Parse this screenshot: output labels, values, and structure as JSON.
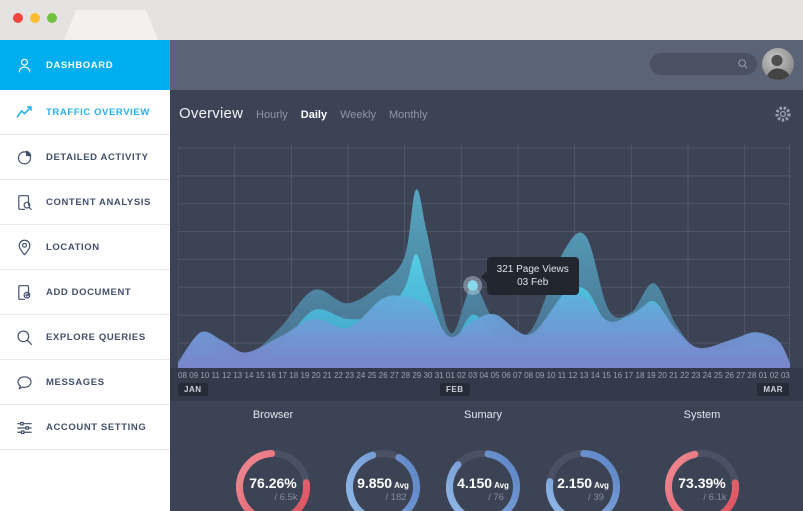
{
  "window": {
    "controls": [
      {
        "name": "close",
        "color": "#f2453d"
      },
      {
        "name": "minimize",
        "color": "#fdbd2f"
      },
      {
        "name": "maximize",
        "color": "#6fc13e"
      }
    ]
  },
  "sidebar": {
    "items": [
      {
        "label": "DASHBOARD",
        "icon": "user",
        "active": true
      },
      {
        "label": "TRAFFIC OVERVIEW",
        "icon": "line-chart",
        "highlight": true
      },
      {
        "label": "DETAILED ACTIVITY",
        "icon": "pie-chart"
      },
      {
        "label": "CONTENT ANALYSIS",
        "icon": "doc-search"
      },
      {
        "label": "LOCATION",
        "icon": "map-pin"
      },
      {
        "label": "ADD DOCUMENT",
        "icon": "doc-add"
      },
      {
        "label": "EXPLORE QUERIES",
        "icon": "magnifier"
      },
      {
        "label": "MESSAGES",
        "icon": "chat-bubble"
      },
      {
        "label": "ACCOUNT SETTING",
        "icon": "sliders"
      }
    ]
  },
  "topbar": {
    "search_placeholder": ""
  },
  "overview": {
    "title": "Overview",
    "tabs": [
      {
        "label": "Hourly",
        "active": false
      },
      {
        "label": "Daily",
        "active": true
      },
      {
        "label": "Weekly",
        "active": false
      },
      {
        "label": "Monthly",
        "active": false
      }
    ]
  },
  "chart_data": {
    "type": "area",
    "title": "Traffic Overview - Daily",
    "unit": "Page Views",
    "x_labels": [
      "08",
      "09",
      "10",
      "11",
      "12",
      "13",
      "14",
      "15",
      "16",
      "17",
      "18",
      "19",
      "20",
      "21",
      "22",
      "23",
      "24",
      "25",
      "26",
      "27",
      "28",
      "29",
      "30",
      "31",
      "01",
      "02",
      "03",
      "04",
      "05",
      "06",
      "07",
      "08",
      "09",
      "10",
      "11",
      "12",
      "13",
      "14",
      "15",
      "16",
      "17",
      "18",
      "19",
      "20",
      "21",
      "22",
      "23",
      "24",
      "25",
      "26",
      "27",
      "28",
      "01",
      "02",
      "03"
    ],
    "months": [
      {
        "label": "JAN",
        "index": 0
      },
      {
        "label": "FEB",
        "index": 24
      },
      {
        "label": "MAR",
        "index": 52
      }
    ],
    "grid": {
      "v_step_days": 5,
      "h_lines": 8
    },
    "value_scale": "percent_of_plot_height",
    "series": [
      {
        "name": "layer-back",
        "color_top": "#58aec9",
        "color_bottom": "#49708f",
        "opacity": 0.92,
        "points": [
          [
            0,
            3
          ],
          [
            2,
            15
          ],
          [
            4,
            9
          ],
          [
            6,
            5
          ],
          [
            9,
            18
          ],
          [
            12,
            35
          ],
          [
            15,
            29
          ],
          [
            18,
            38
          ],
          [
            20,
            50
          ],
          [
            21,
            80
          ],
          [
            22,
            60
          ],
          [
            24,
            16
          ],
          [
            26,
            37
          ],
          [
            28,
            21
          ],
          [
            31,
            16
          ],
          [
            34,
            52
          ],
          [
            36,
            59
          ],
          [
            38,
            26
          ],
          [
            40,
            25
          ],
          [
            42,
            38
          ],
          [
            44,
            19
          ],
          [
            46,
            8
          ],
          [
            49,
            10
          ],
          [
            51,
            15
          ],
          [
            53,
            10
          ],
          [
            54,
            3
          ]
        ]
      },
      {
        "name": "layer-mid",
        "color_top": "#55d2ec",
        "color_bottom": "#3fa3c8",
        "opacity": 0.9,
        "points": [
          [
            0,
            2
          ],
          [
            2,
            10
          ],
          [
            4,
            6
          ],
          [
            6,
            4
          ],
          [
            9,
            10
          ],
          [
            12,
            26
          ],
          [
            15,
            22
          ],
          [
            18,
            24
          ],
          [
            20,
            36
          ],
          [
            21,
            51
          ],
          [
            22,
            36
          ],
          [
            24,
            12
          ],
          [
            26,
            24
          ],
          [
            28,
            15
          ],
          [
            31,
            12
          ],
          [
            34,
            33
          ],
          [
            36,
            35
          ],
          [
            38,
            19
          ],
          [
            40,
            22
          ],
          [
            42,
            30
          ],
          [
            44,
            15
          ],
          [
            46,
            8
          ],
          [
            49,
            9
          ],
          [
            51,
            11
          ],
          [
            53,
            9
          ],
          [
            54,
            2
          ]
        ]
      },
      {
        "name": "layer-front",
        "color_top": "#5fb0dd",
        "color_bottom": "#7e83cd",
        "opacity": 0.95,
        "points": [
          [
            0,
            2
          ],
          [
            2,
            16
          ],
          [
            4,
            12
          ],
          [
            6,
            7
          ],
          [
            9,
            14
          ],
          [
            12,
            22
          ],
          [
            15,
            18
          ],
          [
            18,
            31
          ],
          [
            20,
            32
          ],
          [
            22,
            28
          ],
          [
            24,
            14
          ],
          [
            26,
            21
          ],
          [
            28,
            24
          ],
          [
            31,
            15
          ],
          [
            34,
            32
          ],
          [
            36,
            31
          ],
          [
            38,
            21
          ],
          [
            40,
            24
          ],
          [
            42,
            29
          ],
          [
            44,
            17
          ],
          [
            46,
            9
          ],
          [
            49,
            13
          ],
          [
            51,
            16
          ],
          [
            53,
            12
          ],
          [
            54,
            2
          ]
        ]
      }
    ],
    "highlight": {
      "day_index": 26,
      "value": 37,
      "tooltip_line1": "321 Page Views",
      "tooltip_line2": "03 Feb"
    }
  },
  "gauges": {
    "group_labels": [
      {
        "label": "Browser",
        "gauge_index": 0
      },
      {
        "label": "Sumary",
        "gauge_index": 2
      },
      {
        "label": "System",
        "gauge_index": 4
      }
    ],
    "items": [
      {
        "value": "76.26%",
        "suffix": "",
        "sub": "/ 6.5k",
        "color": "red",
        "arc_percent": 76.26,
        "gap_deg": -50
      },
      {
        "value": "9.850",
        "suffix": "Avg",
        "sub": "/ 182",
        "color": "blue",
        "arc_percent": 87,
        "gap_deg": -85
      },
      {
        "value": "4.150",
        "suffix": "Avg",
        "sub": "/ 76",
        "color": "blue",
        "arc_percent": 84,
        "gap_deg": -110
      },
      {
        "value": "2.150",
        "suffix": "Avg",
        "sub": "/ 39",
        "color": "blue",
        "arc_percent": 77,
        "gap_deg": -130
      },
      {
        "value": "73.39%",
        "suffix": "",
        "sub": "/ 6.1k",
        "color": "red",
        "arc_percent": 73.39,
        "gap_deg": -55
      }
    ],
    "centers_x": [
      103,
      213,
      313,
      413,
      532
    ],
    "colors": {
      "red_light": "#ef8b93",
      "red_dark": "#dd4f5e",
      "blue_light": "#93bae8",
      "blue_dark": "#5b82c4",
      "track": "#4a5164"
    }
  },
  "theme": {
    "accent_blue": "#00aeef",
    "header_bg": "#5b6376",
    "content_bg": "#3c4355",
    "grid_line_rgba": "rgba(165,178,205,0.18)",
    "axis_strip_bg": "#333a49",
    "tooltip_bg": "#22262e"
  }
}
